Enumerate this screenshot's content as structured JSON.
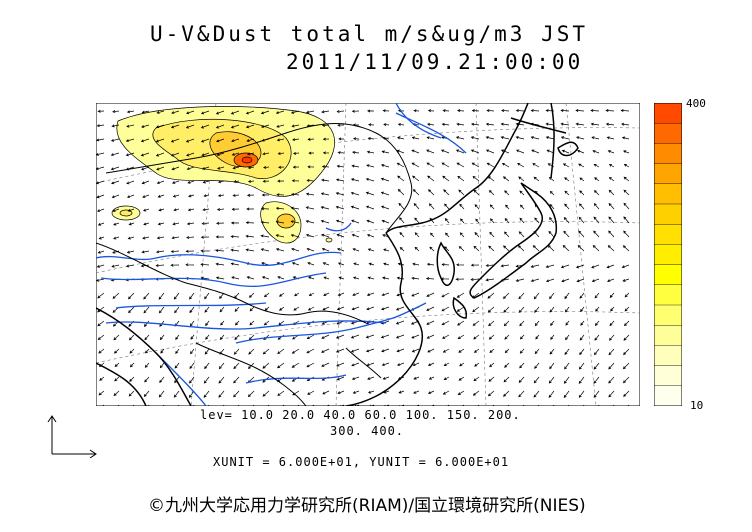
{
  "title": {
    "line1": "U-V&Dust total m/s&ug/m3 JST",
    "line2": "2011/11/09.21:00:00"
  },
  "colorbar": {
    "max_label": "400",
    "min_label": "10",
    "colors": [
      "#ff4a00",
      "#ff6a00",
      "#ff8c00",
      "#ffa500",
      "#ffbf00",
      "#ffd000",
      "#ffe000",
      "#ffee00",
      "#ffff00",
      "#ffff40",
      "#ffff70",
      "#ffff99",
      "#ffffbb",
      "#ffffd8",
      "#ffffee"
    ]
  },
  "levels": {
    "line1": "lev= 10.0 20.0 40.0 60.0 100. 150. 200.",
    "line2": "300. 400."
  },
  "units": "XUNIT = 6.000E+01, YUNIT = 6.000E+01",
  "credit": "©九州大学応用力学研究所(RIAM)/国立環境研究所(NIES)"
}
